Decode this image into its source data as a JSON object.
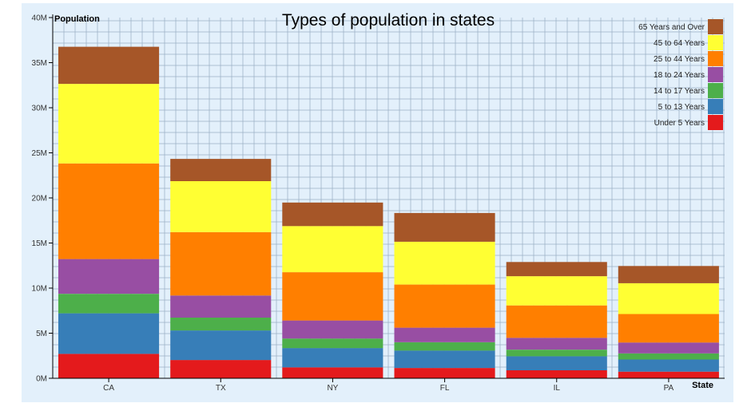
{
  "chart_data": {
    "type": "bar",
    "stacked": true,
    "title": "Types of population in states",
    "xlabel": "State",
    "ylabel": "Population",
    "categories": [
      "CA",
      "TX",
      "NY",
      "FL",
      "IL",
      "PA"
    ],
    "ylim": [
      0,
      40000000
    ],
    "yticks": [
      {
        "value": 0,
        "label": "0M"
      },
      {
        "value": 5000000,
        "label": "5M"
      },
      {
        "value": 10000000,
        "label": "10M"
      },
      {
        "value": 15000000,
        "label": "15M"
      },
      {
        "value": 20000000,
        "label": "20M"
      },
      {
        "value": 25000000,
        "label": "25M"
      },
      {
        "value": 30000000,
        "label": "30M"
      },
      {
        "value": 35000000,
        "label": "35M"
      },
      {
        "value": 40000000,
        "label": "40M"
      }
    ],
    "grid": true,
    "legend_position": "top-right",
    "background_color": "#e3f0fb",
    "grid_color": "#9bb0c6",
    "series": [
      {
        "name": "Under 5 Years",
        "color": "#e41a1c",
        "values": [
          2704659,
          2027307,
          1208495,
          1140516,
          887266,
          737462
        ]
      },
      {
        "name": "5 to 13 Years",
        "color": "#377eb8",
        "values": [
          4499890,
          3277946,
          2141490,
          1938695,
          1558919,
          1345341
        ]
      },
      {
        "name": "14 to 17 Years",
        "color": "#4daf4a",
        "values": [
          2159981,
          1420518,
          1058031,
          925060,
          725973,
          679201
        ]
      },
      {
        "name": "18 to 24 Years",
        "color": "#984ea3",
        "values": [
          3853788,
          2454721,
          1999120,
          1607297,
          1311479,
          1203944
        ]
      },
      {
        "name": "25 to 44 Years",
        "color": "#ff7f00",
        "values": [
          10604510,
          7017731,
          5355235,
          4782119,
          3596343,
          3157759
        ]
      },
      {
        "name": "45 to 64 Years",
        "color": "#ffff33",
        "values": [
          8819342,
          5656528,
          5120254,
          4746856,
          3239173,
          3414001
        ]
      },
      {
        "name": "65 Years and Over",
        "color": "#a65628",
        "values": [
          4114496,
          2472223,
          2607672,
          3187797,
          1575308,
          1910571
        ]
      }
    ]
  }
}
